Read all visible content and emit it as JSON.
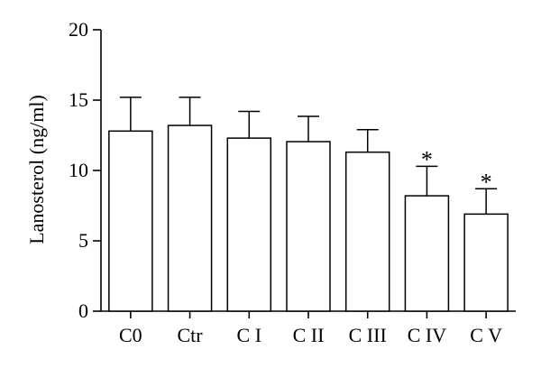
{
  "chart_data": {
    "type": "bar",
    "title": "",
    "xlabel": "",
    "ylabel": "Lanosterol (ng/ml)",
    "ylim": [
      0,
      20
    ],
    "yticks": [
      0,
      5,
      10,
      15,
      20
    ],
    "categories": [
      "C0",
      "Ctr",
      "C I",
      "C II",
      "C III",
      "C IV",
      "C V"
    ],
    "values": [
      12.8,
      13.2,
      12.3,
      12.05,
      11.3,
      8.2,
      6.9
    ],
    "errors": [
      2.4,
      2.0,
      1.9,
      1.8,
      1.6,
      2.1,
      1.8
    ],
    "annotations": [
      "",
      "",
      "",
      "",
      "",
      "*",
      "*"
    ],
    "grid": false,
    "colors": {
      "bar_fill": "#ffffff",
      "bar_stroke": "#000000"
    }
  }
}
